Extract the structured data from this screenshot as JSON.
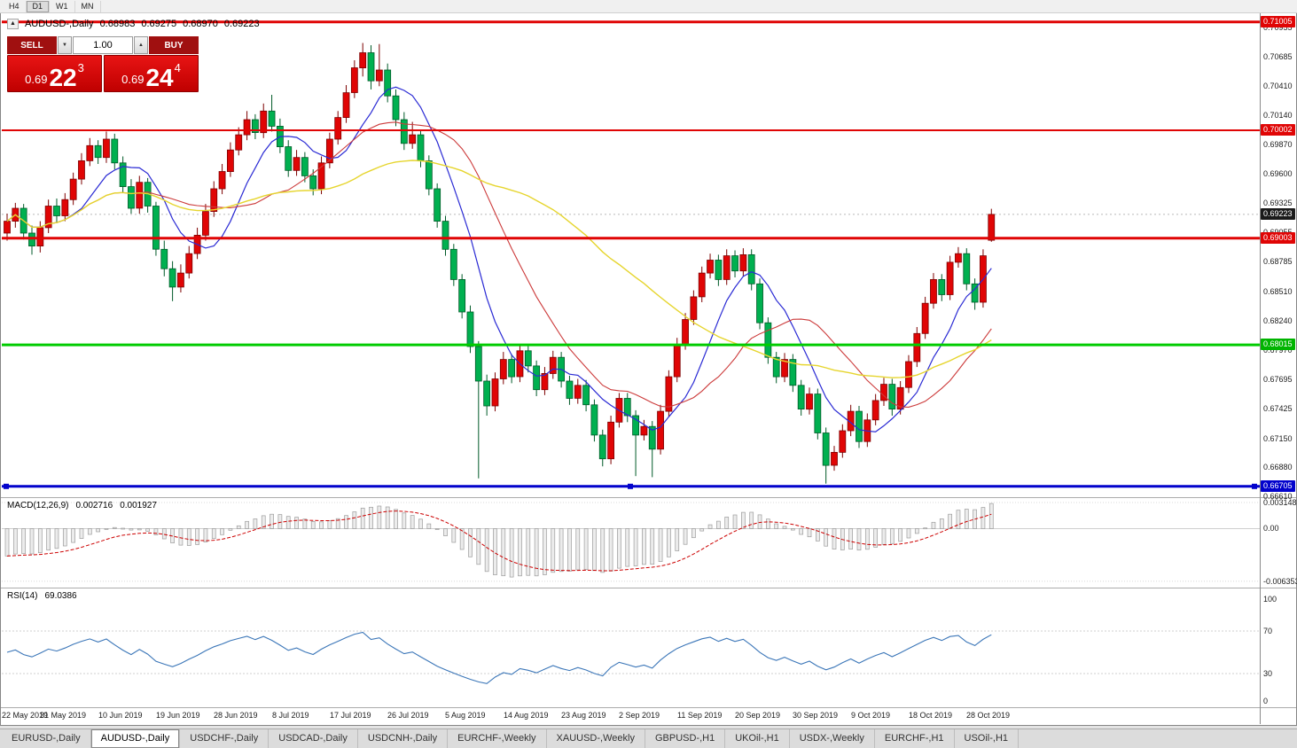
{
  "toolbar": {
    "timeframes": [
      "H4",
      "D1",
      "W1",
      "MN"
    ],
    "active_timeframe": "D1"
  },
  "chart_header": {
    "toggle_icon": "▲",
    "symbol": "AUDUSD-,Daily",
    "open": "0.68983",
    "high": "0.69275",
    "low": "0.68970",
    "close": "0.69223"
  },
  "trade_panel": {
    "sell_label": "SELL",
    "buy_label": "BUY",
    "volume": "1.00",
    "volume_down_icon": "▼",
    "volume_up_icon": "▲",
    "sell_price": {
      "main": "0.69",
      "big": "22",
      "sup": "3"
    },
    "buy_price": {
      "main": "0.69",
      "big": "24",
      "sup": "4"
    }
  },
  "price_axis": {
    "ticks": [
      {
        "label": "0.70955",
        "value": 0.70955
      },
      {
        "label": "0.70685",
        "value": 0.70685
      },
      {
        "label": "0.70410",
        "value": 0.7041
      },
      {
        "label": "0.70140",
        "value": 0.7014
      },
      {
        "label": "0.69870",
        "value": 0.6987
      },
      {
        "label": "0.69600",
        "value": 0.696
      },
      {
        "label": "0.69325",
        "value": 0.69325
      },
      {
        "label": "0.69055",
        "value": 0.69055
      },
      {
        "label": "0.68785",
        "value": 0.68785
      },
      {
        "label": "0.68510",
        "value": 0.6851
      },
      {
        "label": "0.68240",
        "value": 0.6824
      },
      {
        "label": "0.67970",
        "value": 0.6797
      },
      {
        "label": "0.67695",
        "value": 0.67695
      },
      {
        "label": "0.67425",
        "value": 0.67425
      },
      {
        "label": "0.67150",
        "value": 0.6715
      },
      {
        "label": "0.66880",
        "value": 0.6688
      },
      {
        "label": "0.66610",
        "value": 0.6661
      }
    ],
    "levels": [
      {
        "label": "0.71005",
        "value": 0.71005,
        "bg": "#e00505"
      },
      {
        "label": "0.70002",
        "value": 0.70002,
        "bg": "#e00505"
      },
      {
        "label": "0.69223",
        "value": 0.69223,
        "bg": "#1a1a1a"
      },
      {
        "label": "0.69003",
        "value": 0.69003,
        "bg": "#e00505"
      },
      {
        "label": "0.68015",
        "value": 0.68015,
        "bg": "#00b400"
      },
      {
        "label": "0.66705",
        "value": 0.66705,
        "bg": "#0202cc"
      }
    ]
  },
  "macd": {
    "label": "MACD(12,26,9)",
    "macd_value": "0.002716",
    "signal_value": "0.001927",
    "axis": [
      {
        "label": "0.003148",
        "value": 0.003148
      },
      {
        "label": "0.00",
        "value": 0
      },
      {
        "label": "-0.006353",
        "value": -0.006353
      }
    ]
  },
  "rsi": {
    "label": "RSI(14)",
    "value": "69.0386",
    "axis": [
      {
        "label": "100",
        "value": 100
      },
      {
        "label": "70",
        "value": 70
      },
      {
        "label": "30",
        "value": 30
      },
      {
        "label": "0",
        "value": 0
      }
    ]
  },
  "date_axis": {
    "step": 7,
    "labels": [
      "22 May 2019",
      "31 May 2019",
      "10 Jun 2019",
      "19 Jun 2019",
      "28 Jun 2019",
      "8 Jul 2019",
      "17 Jul 2019",
      "26 Jul 2019",
      "5 Aug 2019",
      "14 Aug 2019",
      "23 Aug 2019",
      "2 Sep 2019",
      "11 Sep 2019",
      "20 Sep 2019",
      "30 Sep 2019",
      "9 Oct 2019",
      "18 Oct 2019",
      "28 Oct 2019"
    ]
  },
  "tabs": [
    {
      "label": "EURUSD-,Daily",
      "active": false
    },
    {
      "label": "AUDUSD-,Daily",
      "active": true
    },
    {
      "label": "USDCHF-,Daily",
      "active": false
    },
    {
      "label": "USDCAD-,Daily",
      "active": false
    },
    {
      "label": "USDCNH-,Daily",
      "active": false
    },
    {
      "label": "EURCHF-,Weekly",
      "active": false
    },
    {
      "label": "XAUUSD-,Weekly",
      "active": false
    },
    {
      "label": "GBPUSD-,H1",
      "active": false
    },
    {
      "label": "UKOil-,H1",
      "active": false
    },
    {
      "label": "USDX-,Weekly",
      "active": false
    },
    {
      "label": "EURCHF-,H1",
      "active": false
    },
    {
      "label": "USOil-,H1",
      "active": false
    }
  ],
  "chart_data": {
    "type": "candlestick",
    "symbol": "AUDUSD",
    "timeframe": "Daily",
    "current_price": 0.69223,
    "colors": {
      "up": "#e00505",
      "up_edge": "#7d0000",
      "down": "#00b050",
      "down_edge": "#005a28"
    },
    "moving_averages": [
      {
        "period": 8,
        "color": "#2a2ad4",
        "width": 1.2
      },
      {
        "period": 17,
        "color": "#cc3a3a",
        "width": 1.1
      },
      {
        "period": 40,
        "color": "#e6d52e",
        "width": 1.4
      }
    ],
    "hlines": [
      {
        "price": 0.71005,
        "color": "#e00505",
        "width": 3,
        "handles": false
      },
      {
        "price": 0.70002,
        "color": "#e00505",
        "width": 2,
        "handles": false
      },
      {
        "price": 0.69003,
        "color": "#e00505",
        "width": 3,
        "handles": false
      },
      {
        "price": 0.68015,
        "color": "#00cc00",
        "width": 3,
        "handles": false
      },
      {
        "price": 0.66705,
        "color": "#0202cc",
        "width": 3,
        "handles": true
      }
    ],
    "ohlc": [
      [
        0.6905,
        0.6923,
        0.6898,
        0.6916
      ],
      [
        0.6916,
        0.6933,
        0.691,
        0.6928
      ],
      [
        0.6928,
        0.6932,
        0.6899,
        0.6905
      ],
      [
        0.6905,
        0.6912,
        0.6885,
        0.6893
      ],
      [
        0.6893,
        0.6916,
        0.6887,
        0.691
      ],
      [
        0.691,
        0.6936,
        0.6905,
        0.693
      ],
      [
        0.693,
        0.6937,
        0.6915,
        0.6921
      ],
      [
        0.6921,
        0.6942,
        0.6916,
        0.6936
      ],
      [
        0.6936,
        0.6961,
        0.6931,
        0.6955
      ],
      [
        0.6955,
        0.6979,
        0.695,
        0.6972
      ],
      [
        0.6972,
        0.6993,
        0.6967,
        0.6986
      ],
      [
        0.6986,
        0.6991,
        0.6969,
        0.6975
      ],
      [
        0.6975,
        0.6999,
        0.697,
        0.6992
      ],
      [
        0.6992,
        0.6997,
        0.6964,
        0.697
      ],
      [
        0.697,
        0.6976,
        0.6942,
        0.6948
      ],
      [
        0.6948,
        0.6955,
        0.6923,
        0.6928
      ],
      [
        0.6928,
        0.6958,
        0.6923,
        0.6952
      ],
      [
        0.6952,
        0.6956,
        0.6924,
        0.693
      ],
      [
        0.693,
        0.6934,
        0.6884,
        0.689
      ],
      [
        0.689,
        0.6898,
        0.6865,
        0.6872
      ],
      [
        0.6872,
        0.6879,
        0.6842,
        0.6855
      ],
      [
        0.6855,
        0.6876,
        0.685,
        0.6868
      ],
      [
        0.6868,
        0.6893,
        0.6863,
        0.6886
      ],
      [
        0.6886,
        0.691,
        0.6881,
        0.6903
      ],
      [
        0.6903,
        0.6932,
        0.6898,
        0.6925
      ],
      [
        0.6925,
        0.6953,
        0.692,
        0.6946
      ],
      [
        0.6946,
        0.6969,
        0.6941,
        0.6962
      ],
      [
        0.6962,
        0.6989,
        0.6957,
        0.6982
      ],
      [
        0.6982,
        0.7003,
        0.6977,
        0.6996
      ],
      [
        0.6996,
        0.7018,
        0.6991,
        0.701
      ],
      [
        0.701,
        0.7015,
        0.6992,
        0.6998
      ],
      [
        0.6998,
        0.7025,
        0.6993,
        0.7018
      ],
      [
        0.7018,
        0.7033,
        0.6999,
        0.7004
      ],
      [
        0.7004,
        0.7011,
        0.6979,
        0.6985
      ],
      [
        0.6985,
        0.6991,
        0.6957,
        0.6963
      ],
      [
        0.6963,
        0.6982,
        0.6958,
        0.6975
      ],
      [
        0.6975,
        0.698,
        0.6952,
        0.6958
      ],
      [
        0.6958,
        0.6964,
        0.694,
        0.6946
      ],
      [
        0.6946,
        0.6976,
        0.6941,
        0.697
      ],
      [
        0.697,
        0.6998,
        0.6965,
        0.6992
      ],
      [
        0.6992,
        0.7018,
        0.6987,
        0.7012
      ],
      [
        0.7012,
        0.7042,
        0.7007,
        0.7035
      ],
      [
        0.7035,
        0.7065,
        0.703,
        0.7058
      ],
      [
        0.7058,
        0.7081,
        0.705,
        0.7072
      ],
      [
        0.7072,
        0.7079,
        0.7038,
        0.7046
      ],
      [
        0.7046,
        0.708,
        0.7041,
        0.7056
      ],
      [
        0.7056,
        0.7062,
        0.7026,
        0.7032
      ],
      [
        0.7032,
        0.7038,
        0.7004,
        0.701
      ],
      [
        0.701,
        0.7017,
        0.6982,
        0.6988
      ],
      [
        0.6988,
        0.7008,
        0.6983,
        0.6996
      ],
      [
        0.6996,
        0.7001,
        0.6966,
        0.6972
      ],
      [
        0.6972,
        0.6977,
        0.694,
        0.6946
      ],
      [
        0.6946,
        0.6951,
        0.691,
        0.6916
      ],
      [
        0.6916,
        0.6921,
        0.6884,
        0.689
      ],
      [
        0.689,
        0.6895,
        0.6856,
        0.6862
      ],
      [
        0.6862,
        0.6867,
        0.6826,
        0.6832
      ],
      [
        0.6832,
        0.6838,
        0.6794,
        0.68
      ],
      [
        0.68,
        0.6805,
        0.6678,
        0.6768
      ],
      [
        0.6768,
        0.6774,
        0.6736,
        0.6745
      ],
      [
        0.6745,
        0.6776,
        0.674,
        0.677
      ],
      [
        0.677,
        0.6795,
        0.6765,
        0.6788
      ],
      [
        0.6788,
        0.6793,
        0.6766,
        0.6772
      ],
      [
        0.6772,
        0.6802,
        0.6767,
        0.6796
      ],
      [
        0.6796,
        0.6801,
        0.6776,
        0.6782
      ],
      [
        0.6782,
        0.6787,
        0.6754,
        0.676
      ],
      [
        0.676,
        0.6781,
        0.6755,
        0.6775
      ],
      [
        0.6775,
        0.6796,
        0.677,
        0.679
      ],
      [
        0.679,
        0.6795,
        0.6762,
        0.6768
      ],
      [
        0.6768,
        0.6773,
        0.6746,
        0.6752
      ],
      [
        0.6752,
        0.677,
        0.6747,
        0.6764
      ],
      [
        0.6764,
        0.6769,
        0.674,
        0.6746
      ],
      [
        0.6746,
        0.6751,
        0.6712,
        0.6718
      ],
      [
        0.6718,
        0.6723,
        0.6689,
        0.6696
      ],
      [
        0.6696,
        0.6736,
        0.6691,
        0.673
      ],
      [
        0.673,
        0.6757,
        0.6725,
        0.6752
      ],
      [
        0.6752,
        0.6757,
        0.673,
        0.6736
      ],
      [
        0.6736,
        0.6741,
        0.668,
        0.6718
      ],
      [
        0.6718,
        0.6732,
        0.6713,
        0.6726
      ],
      [
        0.6726,
        0.6731,
        0.6679,
        0.6705
      ],
      [
        0.6705,
        0.6746,
        0.67,
        0.674
      ],
      [
        0.674,
        0.6778,
        0.6735,
        0.6772
      ],
      [
        0.6772,
        0.6808,
        0.6767,
        0.6802
      ],
      [
        0.6802,
        0.6831,
        0.6797,
        0.6825
      ],
      [
        0.6825,
        0.6852,
        0.682,
        0.6846
      ],
      [
        0.6846,
        0.6874,
        0.6841,
        0.6868
      ],
      [
        0.6868,
        0.6886,
        0.6863,
        0.688
      ],
      [
        0.688,
        0.6885,
        0.6856,
        0.6862
      ],
      [
        0.6862,
        0.689,
        0.6857,
        0.6884
      ],
      [
        0.6884,
        0.6889,
        0.6864,
        0.687
      ],
      [
        0.687,
        0.6891,
        0.6865,
        0.6885
      ],
      [
        0.6885,
        0.689,
        0.6852,
        0.6858
      ],
      [
        0.6858,
        0.6863,
        0.6816,
        0.6822
      ],
      [
        0.6822,
        0.6827,
        0.6784,
        0.679
      ],
      [
        0.679,
        0.6795,
        0.6766,
        0.6772
      ],
      [
        0.6772,
        0.6794,
        0.6767,
        0.6788
      ],
      [
        0.6788,
        0.6793,
        0.6758,
        0.6764
      ],
      [
        0.6764,
        0.6769,
        0.6736,
        0.6742
      ],
      [
        0.6742,
        0.6762,
        0.6737,
        0.6756
      ],
      [
        0.6756,
        0.6761,
        0.6714,
        0.672
      ],
      [
        0.672,
        0.6725,
        0.6673,
        0.669
      ],
      [
        0.669,
        0.6708,
        0.6685,
        0.6702
      ],
      [
        0.6702,
        0.6728,
        0.6697,
        0.6722
      ],
      [
        0.6722,
        0.6746,
        0.6717,
        0.674
      ],
      [
        0.674,
        0.6745,
        0.6706,
        0.6712
      ],
      [
        0.6712,
        0.6738,
        0.6707,
        0.6732
      ],
      [
        0.6732,
        0.6756,
        0.6727,
        0.675
      ],
      [
        0.675,
        0.6771,
        0.6745,
        0.6765
      ],
      [
        0.6765,
        0.677,
        0.6736,
        0.6742
      ],
      [
        0.6742,
        0.6768,
        0.6737,
        0.6762
      ],
      [
        0.6762,
        0.6792,
        0.6757,
        0.6786
      ],
      [
        0.6786,
        0.6818,
        0.6781,
        0.6812
      ],
      [
        0.6812,
        0.6846,
        0.6807,
        0.684
      ],
      [
        0.684,
        0.6868,
        0.6835,
        0.6862
      ],
      [
        0.6862,
        0.6867,
        0.6842,
        0.6848
      ],
      [
        0.6848,
        0.6884,
        0.6843,
        0.6878
      ],
      [
        0.6878,
        0.6892,
        0.6873,
        0.6886
      ],
      [
        0.6886,
        0.6891,
        0.6852,
        0.6858
      ],
      [
        0.6858,
        0.6863,
        0.6834,
        0.6841
      ],
      [
        0.6841,
        0.689,
        0.6836,
        0.6884
      ],
      [
        0.68983,
        0.69275,
        0.6897,
        0.69223
      ]
    ]
  }
}
